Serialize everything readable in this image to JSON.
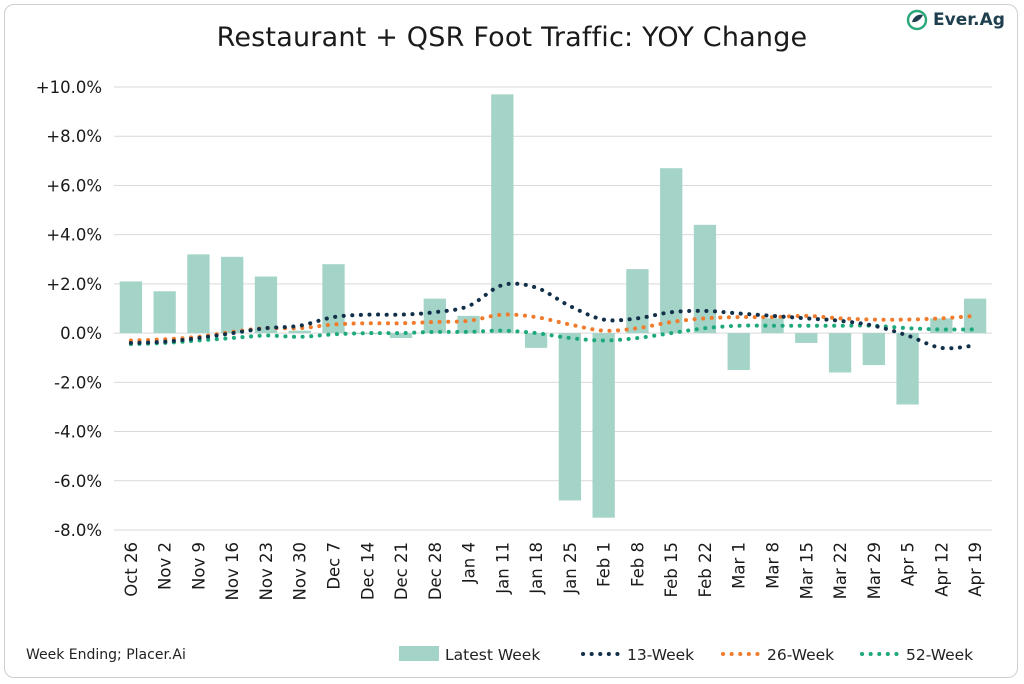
{
  "title": "Restaurant + QSR Foot Traffic: YOY Change",
  "footnote": "Week Ending; Placer.Ai",
  "logo": {
    "text": "Ever.Ag",
    "icon": "leaf-circle-icon",
    "color": "#1f3f4f",
    "accent": "#2aa87a"
  },
  "colors": {
    "bar": "#a3d4c7",
    "s13": "#12304a",
    "s26": "#f07b2c",
    "s52": "#1ea97c",
    "grid": "#d9d9d9"
  },
  "chart_data": {
    "type": "bar",
    "title": "Restaurant + QSR Foot Traffic: YOY Change",
    "xlabel": "Week Ending",
    "ylabel": "",
    "ylim": [
      -8.0,
      10.0
    ],
    "yticks": [
      -8.0,
      -6.0,
      -4.0,
      -2.0,
      0.0,
      2.0,
      4.0,
      6.0,
      8.0,
      10.0
    ],
    "ytick_labels": [
      "-8.0%",
      "-6.0%",
      "-4.0%",
      "-2.0%",
      "0.0%",
      "+2.0%",
      "+4.0%",
      "+6.0%",
      "+8.0%",
      "+10.0%"
    ],
    "grid": true,
    "legend_position": "bottom-right",
    "categories": [
      "Oct 26",
      "Nov 2",
      "Nov 9",
      "Nov 16",
      "Nov 23",
      "Nov 30",
      "Dec 7",
      "Dec 14",
      "Dec 21",
      "Dec 28",
      "Jan 4",
      "Jan 11",
      "Jan 18",
      "Jan 25",
      "Feb 1",
      "Feb 8",
      "Feb 15",
      "Feb 22",
      "Mar 1",
      "Mar 8",
      "Mar 15",
      "Mar 22",
      "Mar 29",
      "Apr 5",
      "Apr 12",
      "Apr 19"
    ],
    "series": [
      {
        "name": "Latest Week",
        "type": "bar",
        "values": [
          2.1,
          1.7,
          3.2,
          3.1,
          2.3,
          0.1,
          2.8,
          0.0,
          -0.2,
          1.4,
          0.7,
          9.7,
          -0.6,
          -6.8,
          -7.5,
          2.6,
          6.7,
          4.4,
          -1.5,
          0.6,
          -0.4,
          -1.6,
          -1.3,
          -2.9,
          0.6,
          1.4
        ]
      },
      {
        "name": "13-Week",
        "type": "line",
        "values": [
          -0.4,
          -0.35,
          -0.2,
          0.0,
          0.2,
          0.3,
          0.65,
          0.75,
          0.75,
          0.85,
          1.1,
          1.95,
          1.85,
          1.1,
          0.55,
          0.6,
          0.85,
          0.9,
          0.8,
          0.7,
          0.6,
          0.5,
          0.3,
          -0.1,
          -0.6,
          -0.5
        ]
      },
      {
        "name": "26-Week",
        "type": "line",
        "values": [
          -0.3,
          -0.25,
          -0.15,
          0.05,
          0.2,
          0.2,
          0.35,
          0.4,
          0.4,
          0.45,
          0.5,
          0.75,
          0.65,
          0.35,
          0.1,
          0.2,
          0.45,
          0.6,
          0.65,
          0.65,
          0.7,
          0.6,
          0.55,
          0.55,
          0.6,
          0.7
        ]
      },
      {
        "name": "52-Week",
        "type": "line",
        "values": [
          -0.45,
          -0.4,
          -0.3,
          -0.2,
          -0.1,
          -0.15,
          -0.05,
          0.0,
          0.0,
          0.05,
          0.05,
          0.1,
          0.0,
          -0.2,
          -0.3,
          -0.2,
          0.0,
          0.2,
          0.3,
          0.3,
          0.3,
          0.3,
          0.3,
          0.2,
          0.15,
          0.15
        ]
      }
    ]
  }
}
